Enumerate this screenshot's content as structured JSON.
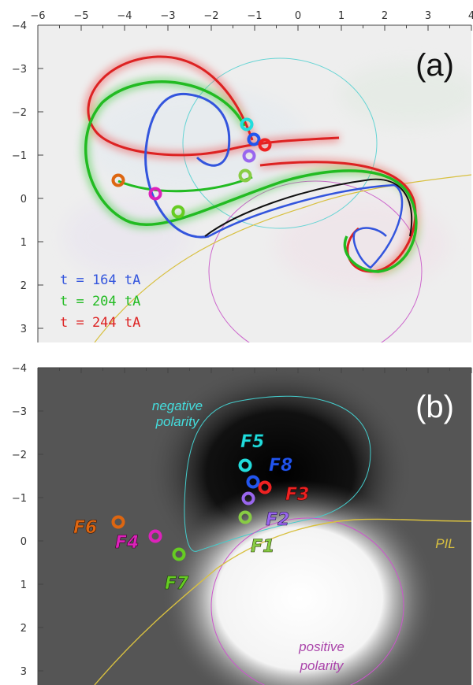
{
  "axes": {
    "x_ticks": [
      "−6",
      "−5",
      "−4",
      "−3",
      "−2",
      "−1",
      "0",
      "1",
      "2",
      "3",
      "4"
    ],
    "y_ticks": [
      "−4",
      "−3",
      "−2",
      "−1",
      "0",
      "1",
      "2",
      "3"
    ]
  },
  "panel_a": {
    "label": "(a)",
    "legend": [
      {
        "text": "t = 164 tA",
        "color": "#3355dd"
      },
      {
        "text": "t = 204 tA",
        "color": "#22bb22"
      },
      {
        "text": "t = 244 tA",
        "color": "#dd2222"
      }
    ]
  },
  "panel_b": {
    "label": "(b)",
    "negative_polarity": [
      "negative",
      "polarity"
    ],
    "positive_polarity": [
      "positive",
      "polarity"
    ],
    "pil_label": "PIL",
    "footpoints": [
      {
        "name": "F5",
        "color": "#22dddd"
      },
      {
        "name": "F8",
        "color": "#2255ee"
      },
      {
        "name": "F3",
        "color": "#ee2222"
      },
      {
        "name": "F2",
        "color": "#9966ee"
      },
      {
        "name": "F1",
        "color": "#88cc44"
      },
      {
        "name": "F6",
        "color": "#dd6611"
      },
      {
        "name": "F4",
        "color": "#dd22bb"
      },
      {
        "name": "F7",
        "color": "#66cc22"
      }
    ]
  },
  "colors": {
    "pil": "#d8c040",
    "negative_contour": "#44cccc",
    "positive_contour": "#cc55cc"
  }
}
